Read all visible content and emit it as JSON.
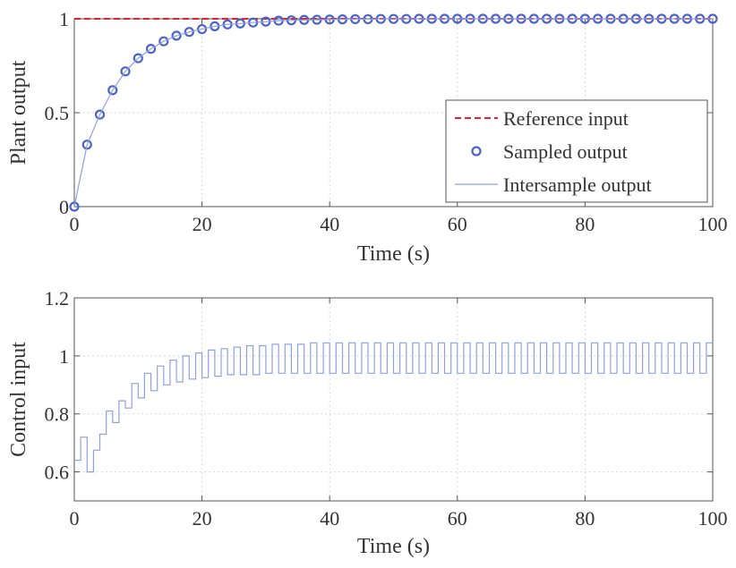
{
  "chart_data": [
    {
      "type": "line",
      "xlabel": "Time (s)",
      "ylabel": "Plant output",
      "xlim": [
        0,
        100
      ],
      "ylim": [
        0,
        1
      ],
      "xticks": [
        "0",
        "20",
        "40",
        "60",
        "80",
        "100"
      ],
      "yticks": [
        "0",
        "0.5",
        "1"
      ],
      "grid": true,
      "legend_position": "bottom-right",
      "series": [
        {
          "name": "Reference input",
          "style": "dashed",
          "color": "#e8202a",
          "x": [
            0,
            100
          ],
          "y": [
            1,
            1
          ]
        },
        {
          "name": "Sampled output",
          "style": "circle-markers",
          "color": "#4a64c8",
          "x": [
            0,
            2,
            4,
            6,
            8,
            10,
            12,
            14,
            16,
            18,
            20,
            22,
            24,
            26,
            28,
            30,
            32,
            34,
            36,
            38,
            40,
            42,
            44,
            46,
            48,
            50,
            52,
            54,
            56,
            58,
            60,
            62,
            64,
            66,
            68,
            70,
            72,
            74,
            76,
            78,
            80,
            82,
            84,
            86,
            88,
            90,
            92,
            94,
            96,
            98,
            100
          ],
          "y": [
            0,
            0.33,
            0.49,
            0.62,
            0.72,
            0.79,
            0.84,
            0.88,
            0.91,
            0.93,
            0.945,
            0.96,
            0.97,
            0.975,
            0.98,
            0.985,
            0.99,
            0.992,
            0.994,
            0.995,
            0.996,
            0.997,
            0.998,
            0.998,
            0.999,
            0.999,
            0.999,
            1,
            1,
            1,
            1,
            1,
            1,
            1,
            1,
            1,
            1,
            1,
            1,
            1,
            1,
            1,
            1,
            1,
            1,
            1,
            1,
            1,
            1,
            1,
            1
          ]
        },
        {
          "name": "Intersample output",
          "style": "solid",
          "color": "#8fa0e6",
          "x": [
            0,
            2,
            4,
            6,
            8,
            10,
            12,
            14,
            16,
            18,
            20,
            22,
            24,
            26,
            28,
            30,
            32,
            34,
            36,
            38,
            40,
            42,
            44,
            46,
            48,
            50,
            52,
            54,
            56,
            58,
            60,
            62,
            64,
            66,
            68,
            70,
            72,
            74,
            76,
            78,
            80,
            82,
            84,
            86,
            88,
            90,
            92,
            94,
            96,
            98,
            100
          ],
          "y": [
            0,
            0.33,
            0.49,
            0.62,
            0.72,
            0.79,
            0.84,
            0.88,
            0.91,
            0.93,
            0.945,
            0.96,
            0.97,
            0.975,
            0.98,
            0.985,
            0.99,
            0.992,
            0.994,
            0.995,
            0.996,
            0.997,
            0.998,
            0.998,
            0.999,
            0.999,
            0.999,
            1,
            1,
            1,
            1,
            1,
            1,
            1,
            1,
            1,
            1,
            1,
            1,
            1,
            1,
            1,
            1,
            1,
            1,
            1,
            1,
            1,
            1,
            1,
            1
          ]
        }
      ]
    },
    {
      "type": "line",
      "xlabel": "Time (s)",
      "ylabel": "Control input",
      "xlim": [
        0,
        100
      ],
      "ylim": [
        0.5,
        1.2
      ],
      "xticks": [
        "0",
        "20",
        "40",
        "60",
        "80",
        "100"
      ],
      "yticks": [
        "0.6",
        "0.8",
        "1",
        "1.2"
      ],
      "grid": true,
      "series": [
        {
          "style": "step",
          "color": "#8fa0e6",
          "x": [
            0,
            1,
            2,
            3,
            4,
            5,
            6,
            7,
            8,
            9,
            10,
            11,
            12,
            13,
            14,
            15,
            16,
            17,
            18,
            19,
            20,
            21,
            22,
            23,
            24,
            25,
            26,
            27,
            28,
            29,
            30,
            31,
            32,
            33,
            34,
            35,
            36,
            37,
            38,
            39,
            40,
            41,
            42,
            43,
            44,
            45,
            46,
            47,
            48,
            49,
            50,
            51,
            52,
            53,
            54,
            55,
            56,
            57,
            58,
            59,
            60,
            61,
            62,
            63,
            64,
            65,
            66,
            67,
            68,
            69,
            70,
            71,
            72,
            73,
            74,
            75,
            76,
            77,
            78,
            79,
            80,
            81,
            82,
            83,
            84,
            85,
            86,
            87,
            88,
            89,
            90,
            91,
            92,
            93,
            94,
            95,
            96,
            97,
            98,
            99
          ],
          "y": [
            0.64,
            0.72,
            0.6,
            0.675,
            0.73,
            0.81,
            0.77,
            0.845,
            0.82,
            0.905,
            0.855,
            0.94,
            0.88,
            0.965,
            0.9,
            0.985,
            0.91,
            1,
            0.92,
            1.01,
            0.925,
            1.02,
            0.93,
            1.025,
            0.935,
            1.03,
            0.935,
            1.035,
            0.935,
            1.035,
            0.94,
            1.04,
            0.94,
            1.04,
            0.94,
            1.04,
            0.94,
            1.045,
            0.94,
            1.045,
            0.94,
            1.045,
            0.94,
            1.045,
            0.94,
            1.045,
            0.94,
            1.045,
            0.94,
            1.045,
            0.94,
            1.045,
            0.94,
            1.045,
            0.94,
            1.045,
            0.94,
            1.045,
            0.94,
            1.045,
            0.94,
            1.045,
            0.94,
            1.045,
            0.94,
            1.045,
            0.94,
            1.045,
            0.94,
            1.045,
            0.94,
            1.045,
            0.94,
            1.045,
            0.94,
            1.045,
            0.94,
            1.045,
            0.94,
            1.045,
            0.94,
            1.045,
            0.94,
            1.045,
            0.94,
            1.045,
            0.94,
            1.045,
            0.94,
            1.045,
            0.94,
            1.045,
            0.94,
            1.045,
            0.94,
            1.045,
            0.94,
            1.045,
            0.94,
            1.045
          ]
        }
      ]
    }
  ]
}
